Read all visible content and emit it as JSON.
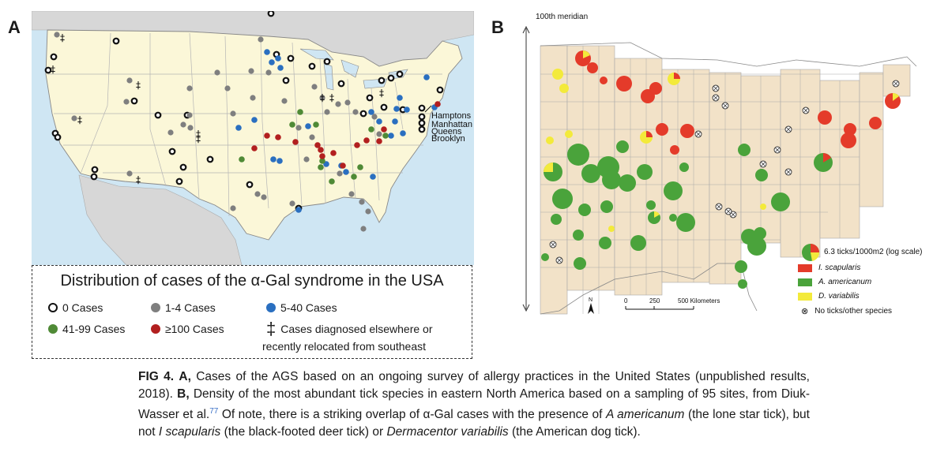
{
  "panel_a": {
    "letter": "A",
    "map_labels": [
      "Hamptons",
      "Manhattan",
      "Queens",
      "Brooklyn"
    ],
    "legend_title": "Distribution of cases of the α-Gal syndrome in the USA",
    "legend": {
      "zero": "0 Cases",
      "gray": "1-4 Cases",
      "blue": "5-40 Cases",
      "green": "41-99 Cases",
      "red": "≥100 Cases",
      "dagger_line1": "Cases diagnosed elsewhere or",
      "dagger_line2": "recently relocated from southeast"
    },
    "colors": {
      "zero": "#ffffff",
      "gray": "#7f7f7f",
      "blue": "#2a6fc0",
      "green": "#4f8a36",
      "red": "#b21f1f",
      "land": "#fbf7d8",
      "water": "#cfe6f3"
    }
  },
  "panel_b": {
    "letter": "B",
    "meridian_label": "100th meridian",
    "size_legend": "6.3 ticks/1000m2 (log scale)",
    "species": [
      {
        "name": "I. scapularis",
        "color": "#e43b2a"
      },
      {
        "name": "A. americanum",
        "color": "#4aa33b"
      },
      {
        "name": "D. variabilis",
        "color": "#f3ea3b"
      }
    ],
    "no_ticks": "No ticks/other species",
    "scale_labels": [
      "0",
      "250",
      "500 Kilometers"
    ],
    "north_label": "N",
    "colors": {
      "grid": "#f2e2c8",
      "line": "#9a9a9a"
    }
  },
  "caption": {
    "fig": "FIG 4.",
    "a": "A,",
    "text1": " Cases of the AGS based on an ongoing survey of allergy practices in the United States (unpublished results, 2018). ",
    "b": "B,",
    "text2": " Density of the most abundant tick species in eastern North America based on a sampling of 95 sites, from Diuk-Wasser et al.",
    "ref": "77",
    "text3": " Of note, there is a striking overlap of α-Gal cases with the presence of ",
    "species1": "A americanum",
    "text4": " (the lone star tick), but not ",
    "species2": "I scapularis",
    "text5": " (the black-footed deer tick) or ",
    "species3": "Dermacentor variabilis",
    "text6": " (the American dog tick)."
  }
}
